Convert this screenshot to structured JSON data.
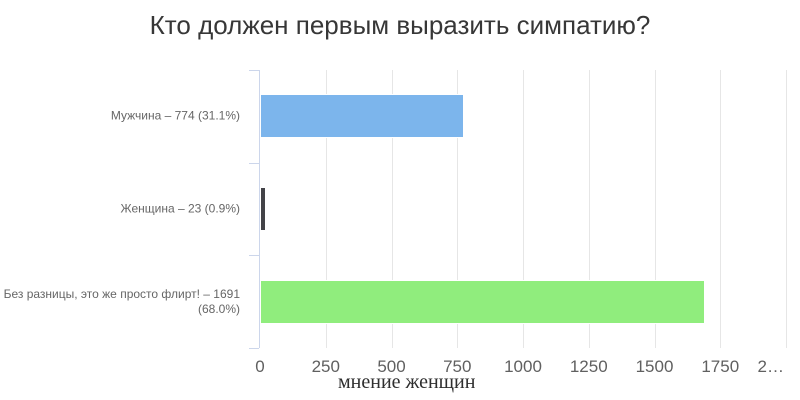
{
  "title": "Кто должен первым выразить симпатию?",
  "chart_data": {
    "type": "bar",
    "orientation": "horizontal",
    "title": "Кто должен первым выразить симпатию?",
    "categories": [
      "Мужчина – 774 (31.1%)",
      "Женщина – 23 (0.9%)",
      "Без разницы, это же просто флирт! – 1691 (68.0%)"
    ],
    "values": [
      774,
      23,
      1691
    ],
    "percents": [
      "31.1%",
      "0.9%",
      "68.0%"
    ],
    "bar_colors": [
      "#7cb5ec",
      "#434348",
      "#90ed7d"
    ],
    "xlabel": "мнение женщин",
    "xlim": [
      0,
      2000
    ],
    "x_ticks": [
      0,
      250,
      500,
      750,
      1000,
      1250,
      1500,
      1750,
      2000
    ],
    "x_tick_labels": [
      "0",
      "250",
      "500",
      "750",
      "1000",
      "1250",
      "1500",
      "1750",
      "2…"
    ],
    "grid": true,
    "legend": false,
    "gridline_color": "#e6e6e6",
    "axis_line_color": "#ccd6eb",
    "label_color": "#666666",
    "title_color": "#373737"
  }
}
